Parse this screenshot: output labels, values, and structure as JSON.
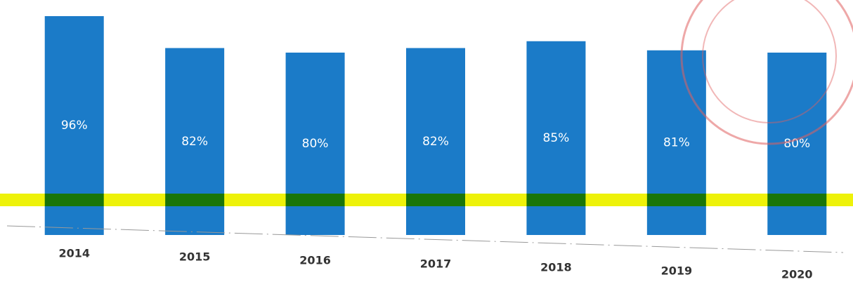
{
  "chart_data": {
    "type": "bar",
    "categories": [
      "2014",
      "2015",
      "2016",
      "2017",
      "2018",
      "2019",
      "2020"
    ],
    "values": [
      96,
      82,
      80,
      82,
      85,
      81,
      80
    ],
    "value_labels": [
      "96%",
      "82%",
      "80%",
      "82%",
      "85%",
      "81%",
      "80%"
    ],
    "color": "#1b7bc8",
    "ylim": [
      0,
      100
    ]
  }
}
